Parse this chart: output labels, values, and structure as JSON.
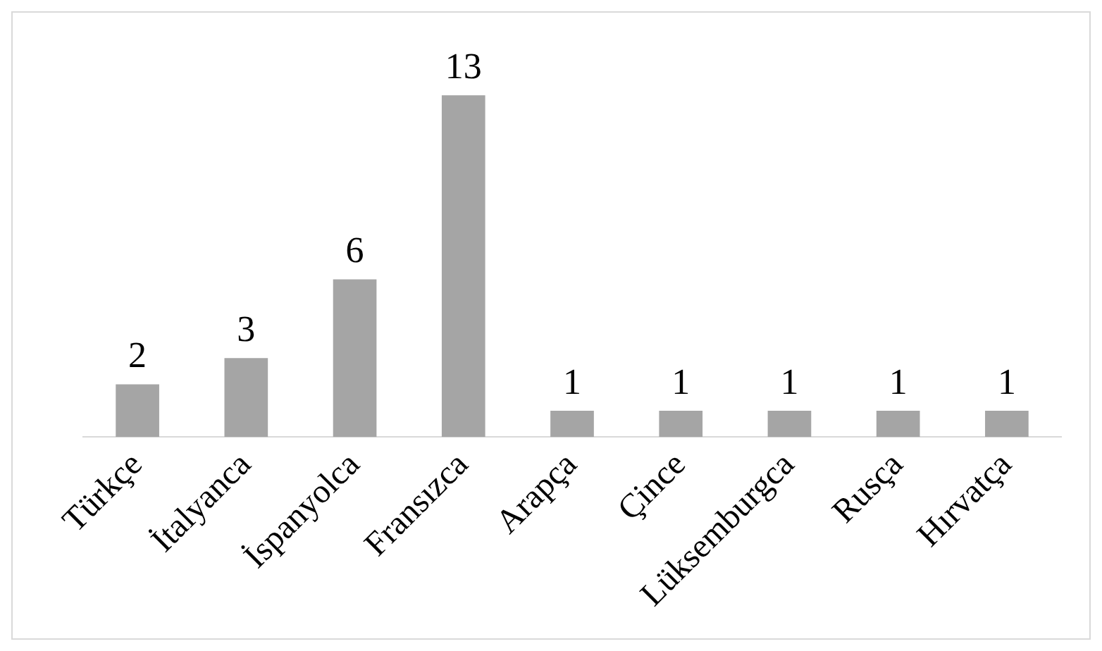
{
  "chart_data": {
    "type": "bar",
    "categories": [
      "Türkçe",
      "İtalyanca",
      "İspanyolca",
      "Fransızca",
      "Arapça",
      "Çince",
      "Lüksemburgca",
      "Rusça",
      "Hırvatça"
    ],
    "values": [
      2,
      3,
      6,
      13,
      1,
      1,
      1,
      1,
      1
    ],
    "color": "#a5a5a5",
    "data_labels": true,
    "grid": false,
    "legend": false
  }
}
